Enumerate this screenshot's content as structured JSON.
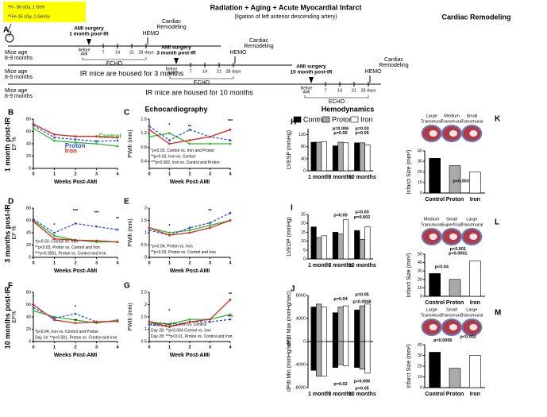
{
  "figure": {
    "panel_letter": "A",
    "radiation": [
      "¹H - 50 cGy, 1 GeV",
      "⁵⁶Fe 15 cGy, 1 GeV/u"
    ],
    "title": "Radiation + Aging + Acute Myocardial Infarct",
    "subtitle": "(ligation of left anterior descending artery)",
    "rows": [
      {
        "age": [
          "Mice age",
          "8-9 months"
        ],
        "surgery": [
          "AMI surgery",
          "1 month post-IR"
        ],
        "before": [
          "Before",
          "AMI"
        ],
        "days": [
          "7",
          "14",
          "21",
          "28 days"
        ],
        "echo": "ECHO",
        "hemo": "HEMO",
        "remodeling": [
          "Cardiac",
          "Remodeling"
        ]
      },
      {
        "age": [
          "Mice age",
          "8-9 months"
        ],
        "housed": "IR mice are housed for 3 months",
        "surgery": [
          "AMI surgery",
          "3 month post-IR"
        ],
        "before": [
          "Before",
          "AMI"
        ],
        "days": [
          "7",
          "14",
          "21",
          "28 days"
        ],
        "echo": "ECHO",
        "hemo": "HEMO",
        "remodeling": [
          "Cardiac",
          "Remodeling"
        ]
      },
      {
        "age": [
          "Mice age",
          "8-9 months"
        ],
        "housed": "IR mice are housed for 10 months",
        "surgery": [
          "AMI surgery",
          "10 month post-IR"
        ],
        "before": [
          "Before",
          "AMI"
        ],
        "days": [
          "7",
          "14",
          "21",
          "28 days"
        ],
        "echo": "ECHO",
        "hemo": "HEMO",
        "remodeling": [
          "Cardiac",
          "Remodeling"
        ]
      }
    ],
    "sections": [
      "Echocardiography",
      "Hemodynamics",
      "Cardiac Remodeling"
    ],
    "row_labels": [
      "1 month post-IR",
      "3 months post-IR",
      "10 months post-IR"
    ]
  },
  "chart_data": [
    {
      "type": "line",
      "letter": "B",
      "ylabel": "EF %",
      "xlabel": "Weeks Post-AMI",
      "x": [
        0,
        1,
        2,
        3,
        4
      ],
      "xlim": [
        0,
        4
      ],
      "xticks": [
        0,
        1,
        2,
        3,
        4
      ],
      "ylim": [
        0,
        80
      ],
      "yticks": [
        0,
        20,
        40,
        60,
        80
      ],
      "series": [
        {
          "name": "Control",
          "color": "#2db82d",
          "dashed": false,
          "values": [
            65,
            45,
            42,
            40,
            36
          ]
        },
        {
          "name": "Proton",
          "color": "#2f4fd8",
          "dashed": true,
          "values": [
            70,
            50,
            47,
            44,
            45
          ]
        },
        {
          "name": "Iron",
          "color": "#d42a1f",
          "dashed": false,
          "values": [
            72,
            55,
            52,
            52,
            50
          ]
        }
      ]
    },
    {
      "type": "line",
      "letter": "C",
      "ylabel": "PWth (mm)",
      "xlabel": "Week Post-AMI",
      "x": [
        0,
        1,
        2,
        3,
        4
      ],
      "xlim": [
        0,
        4
      ],
      "xticks": [
        0,
        1,
        2,
        3,
        4
      ],
      "ylim": [
        0.2,
        1.6
      ],
      "yticks": [
        0.4,
        0.8,
        1.2,
        1.6
      ],
      "series": [
        {
          "color": "#2db82d",
          "dashed": false,
          "values": [
            1.1,
            1.2,
            0.9,
            0.9,
            0.9
          ]
        },
        {
          "color": "#2f4fd8",
          "dashed": true,
          "values": [
            1.4,
            1.0,
            1.3,
            1.1,
            1.0
          ]
        },
        {
          "color": "#d42a1f",
          "dashed": false,
          "values": [
            1.3,
            0.9,
            1.0,
            1.1,
            1.3
          ]
        }
      ],
      "annotations": [
        "*",
        "**",
        "***",
        "*p<0.03, Control vs. Iron and Proton",
        "**p<0.03, Iron vs. Control",
        "***p<0.002, Iron vs. Control and Proton"
      ]
    },
    {
      "type": "line",
      "letter": "D",
      "ylabel": "EF %",
      "xlabel": "Weeks Post-AMI",
      "x": [
        0,
        1,
        2,
        3,
        4
      ],
      "xlim": [
        0,
        4
      ],
      "xticks": [
        0,
        1,
        2,
        3,
        4
      ],
      "ylim": [
        0,
        80
      ],
      "yticks": [
        0,
        20,
        40,
        60,
        80
      ],
      "series": [
        {
          "color": "#2db82d",
          "dashed": false,
          "values": [
            60,
            35,
            28,
            25,
            25
          ]
        },
        {
          "color": "#2f4fd8",
          "dashed": true,
          "values": [
            62,
            40,
            55,
            50,
            45
          ]
        },
        {
          "color": "#d42a1f",
          "dashed": false,
          "values": [
            58,
            30,
            28,
            27,
            25
          ]
        }
      ],
      "annotations": [
        "*",
        "***",
        "***",
        "**",
        "*p<0.03, Control vs. Iron",
        "**p<0.03, Proton vs. Control and Iron",
        "***p<0.0001, Proton vs. Control and Iron"
      ]
    },
    {
      "type": "line",
      "letter": "E",
      "ylabel": "PWth (mm)",
      "xlabel": "Week Post-AMI",
      "x": [
        0,
        1,
        2,
        3,
        4
      ],
      "xlim": [
        0,
        4
      ],
      "xticks": [
        0,
        1,
        2,
        3,
        4
      ],
      "ylim": [
        0,
        2
      ],
      "yticks": [
        0,
        0.5,
        1,
        1.5,
        2
      ],
      "series": [
        {
          "color": "#2db82d",
          "dashed": false,
          "values": [
            1.2,
            1.0,
            1.1,
            1.3,
            1.5
          ]
        },
        {
          "color": "#2f4fd8",
          "dashed": true,
          "values": [
            1.1,
            0.9,
            1.2,
            1.4,
            1.8
          ]
        },
        {
          "color": "#d42a1f",
          "dashed": false,
          "values": [
            1.2,
            0.9,
            1.0,
            1.2,
            1.5
          ]
        }
      ],
      "annotations": [
        "*",
        "**",
        "*p<0.04, Proton vs. Iron",
        "**p<0.03, Proton vs. Control and Iron"
      ]
    },
    {
      "type": "line",
      "letter": "F",
      "ylabel": "EF%",
      "xlabel": "Weeks Post-AMI",
      "x": [
        0,
        1,
        2,
        3,
        4
      ],
      "xlim": [
        0,
        4
      ],
      "xticks": [
        0,
        1,
        2,
        3,
        4
      ],
      "ylim": [
        0,
        80
      ],
      "yticks": [
        0,
        20,
        40,
        60,
        80
      ],
      "series": [
        {
          "color": "#2db82d",
          "dashed": false,
          "values": [
            50,
            40,
            35,
            30,
            35
          ]
        },
        {
          "color": "#2f4fd8",
          "dashed": true,
          "values": [
            55,
            38,
            45,
            32,
            33
          ]
        },
        {
          "color": "#d42a1f",
          "dashed": false,
          "values": [
            60,
            35,
            30,
            32,
            33
          ]
        }
      ],
      "annotations": [
        "*",
        "*",
        "**",
        "*p<0.04, Iron vs. Control and Proton",
        "Day 14: **p<0.001, Proton vs. Control and Iron"
      ]
    },
    {
      "type": "line",
      "letter": "G",
      "ylabel": "PWth (mm)",
      "xlabel": "Week Post-AMI",
      "x": [
        0,
        1,
        2,
        3,
        4
      ],
      "xlim": [
        0,
        4
      ],
      "xticks": [
        0,
        1,
        2,
        3,
        4
      ],
      "ylim": [
        0.5,
        2.5
      ],
      "yticks": [
        0.5,
        1,
        1.5,
        2,
        2.5
      ],
      "series": [
        {
          "color": "#2db82d",
          "dashed": false,
          "values": [
            1.3,
            1.2,
            1.4,
            1.4,
            1.6
          ]
        },
        {
          "color": "#2f4fd8",
          "dashed": true,
          "values": [
            1.2,
            1.1,
            1.3,
            1.3,
            1.4
          ]
        },
        {
          "color": "#d42a1f",
          "dashed": false,
          "values": [
            1.3,
            1.1,
            1.3,
            1.4,
            2.2
          ]
        }
      ],
      "annotations": [
        "*",
        "**",
        "***",
        "Day 7: *p<0.05, Iron vs. Control",
        "Day 28: **p<0.004 Control vs. Iron",
        "Day 28: ***p<0.01, Proton vs. Control and Iron"
      ]
    },
    {
      "type": "bar",
      "letter": "H",
      "ylabel": "LVESP (mmHg)",
      "categories": [
        "1 month",
        "3 months",
        "10 months"
      ],
      "ylim": [
        0,
        140
      ],
      "yticks": [
        0,
        40,
        80,
        120
      ],
      "legend": true,
      "series": [
        {
          "name": "Control",
          "color": "#000000",
          "values": [
            95,
            83,
            93
          ]
        },
        {
          "name": "Proton",
          "color": "#aaaaaa",
          "values": [
            95,
            95,
            93
          ]
        },
        {
          "name": "Iron",
          "color": "#ffffff",
          "values": [
            97,
            93,
            86
          ]
        }
      ],
      "annotations": [
        "p=0.006",
        "p=0.05",
        "p=0.03",
        "p=0.05"
      ]
    },
    {
      "type": "bar",
      "letter": "I",
      "ylabel": "LVEDP (mmHg)",
      "categories": [
        "1 month",
        "3 months",
        "10 months"
      ],
      "ylim": [
        0,
        25
      ],
      "yticks": [
        0,
        5,
        10,
        15,
        20,
        25
      ],
      "series": [
        {
          "color": "#000000",
          "values": [
            18,
            15,
            16
          ]
        },
        {
          "color": "#aaaaaa",
          "values": [
            12,
            14,
            11
          ]
        },
        {
          "color": "#ffffff",
          "values": [
            13,
            22,
            18
          ]
        }
      ],
      "annotations": [
        "p=0.05",
        "p=0.03",
        "p=0.002"
      ]
    },
    {
      "type": "bar",
      "letter": "J",
      "ylabel": [
        "dPdt Max (mmHg/sec)",
        "dPdt Min (mmHg/sec)"
      ],
      "categories": [
        "1 month",
        "3 months",
        "10 months"
      ],
      "ylim": [
        -8000,
        8000
      ],
      "yticks": [
        -8000,
        -4000,
        0,
        4000,
        8000
      ],
      "series": [
        {
          "color": "#000000",
          "values": [
            6000,
            5000,
            5500
          ],
          "min_values": [
            -5000,
            -4500,
            -4500
          ]
        },
        {
          "color": "#aaaaaa",
          "values": [
            6500,
            6000,
            6200
          ],
          "min_values": [
            -6000,
            -4000,
            -4800
          ]
        },
        {
          "color": "#ffffff",
          "values": [
            6000,
            6200,
            6500
          ],
          "min_values": [
            -6000,
            -4200,
            -5500
          ]
        }
      ],
      "annotations": [
        "p=0.04",
        "p=0.05",
        "p=0.0006",
        "p=0.02",
        "p=0.006",
        "p=0.05"
      ]
    },
    {
      "type": "bar",
      "letter": "K",
      "ylabel": "Infarct Size (mm²)",
      "categories": [
        "Control",
        "Proton",
        "Iron"
      ],
      "colors": [
        "#000000",
        "#aaaaaa",
        "#ffffff"
      ],
      "values": [
        33,
        26,
        20
      ],
      "ylim": [
        0,
        40
      ],
      "yticks": [
        0,
        10,
        20,
        30,
        40
      ],
      "image_labels": [
        [
          "Large",
          "Transmural"
        ],
        [
          "Medium",
          "Transmural"
        ],
        [
          "Small",
          "Transmural"
        ]
      ],
      "annotations": [
        "p<0.003"
      ]
    },
    {
      "type": "bar",
      "letter": "L",
      "ylabel": "Infarct Size (mm²)",
      "categories": [
        "Control",
        "Proton",
        "Iron"
      ],
      "colors": [
        "#000000",
        "#aaaaaa",
        "#ffffff"
      ],
      "values": [
        27,
        20,
        42
      ],
      "ylim": [
        0,
        50
      ],
      "yticks": [
        0,
        10,
        20,
        30,
        40,
        50
      ],
      "image_labels": [
        [
          "Medium",
          "Transmural"
        ],
        [
          "Small",
          "Superficial"
        ],
        [
          "Large",
          "Transmural"
        ]
      ],
      "annotations": [
        "p<0.04",
        "p<0.001",
        "p<0.0001"
      ]
    },
    {
      "type": "bar",
      "letter": "M",
      "ylabel": "Infarct Size (mm²)",
      "categories": [
        "Control",
        "Proton",
        "Iron"
      ],
      "colors": [
        "#000000",
        "#aaaaaa",
        "#ffffff"
      ],
      "values": [
        33,
        18,
        30
      ],
      "ylim": [
        0,
        40
      ],
      "yticks": [
        0,
        10,
        20,
        30,
        40
      ],
      "image_labels": [
        [
          "Large",
          "Transmural"
        ],
        [
          "Small",
          "Transmural"
        ],
        [
          "Large",
          "Transmural"
        ]
      ],
      "annotations": [
        "p<0.0006",
        "p<0.002"
      ]
    }
  ]
}
